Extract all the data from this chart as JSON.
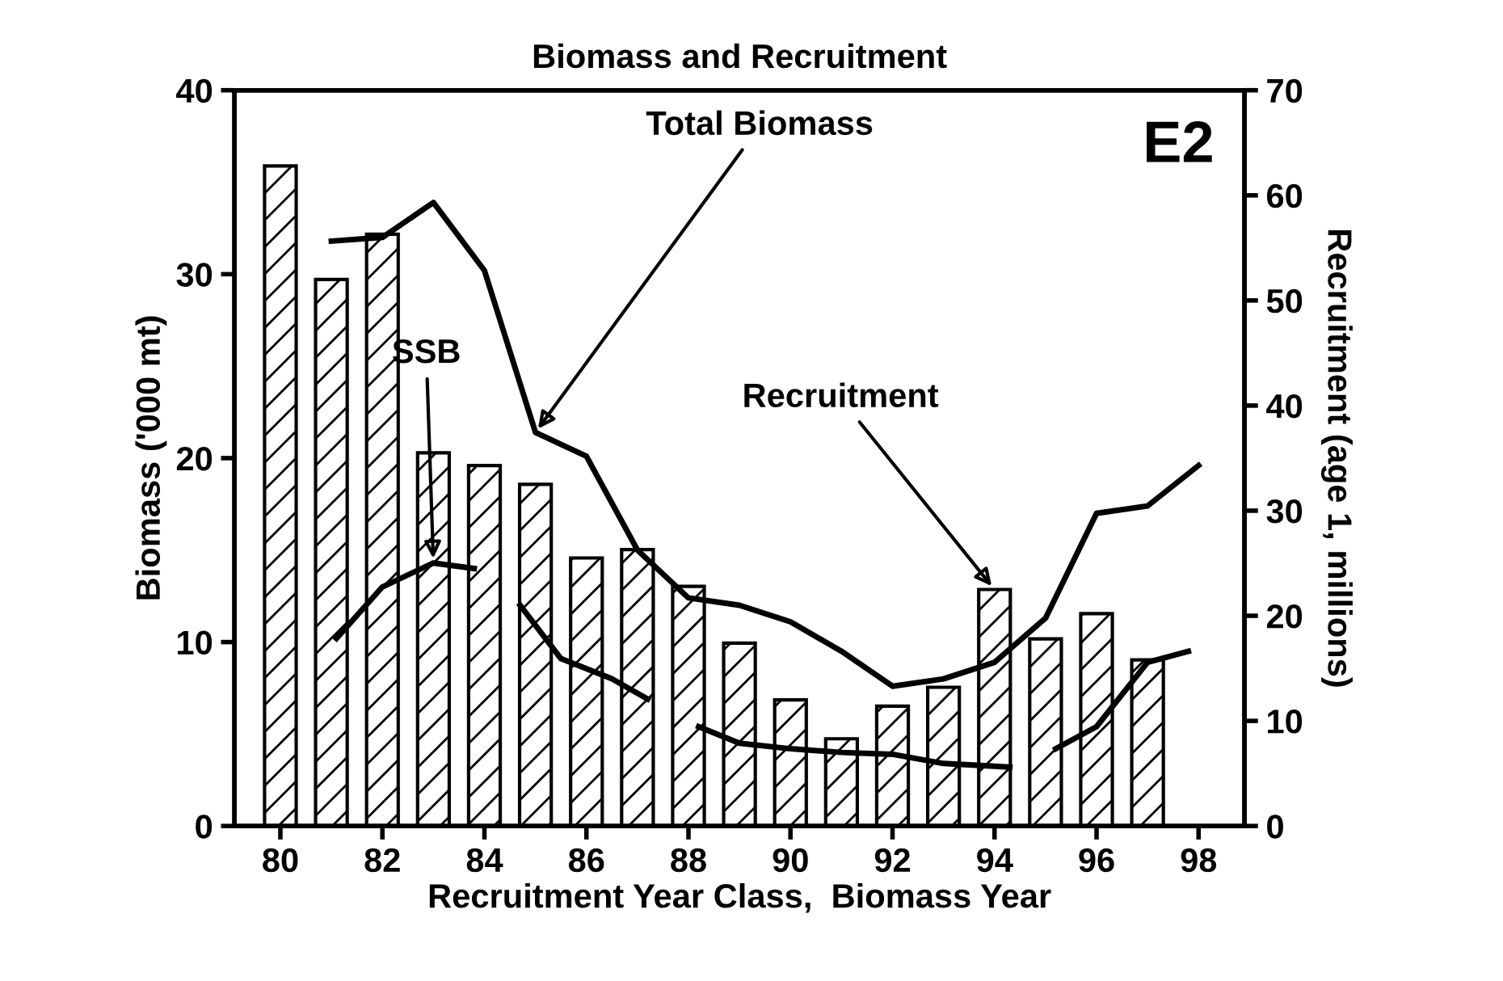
{
  "chart_data": {
    "type": "bar",
    "title": "Biomass and Recruitment",
    "xlabel": "Recruitment Year Class,  Biomass Year",
    "ylabel": "Biomass ('000 mt)",
    "y2label": "Recruitment (age 1, millions)",
    "x": [
      80,
      81,
      82,
      83,
      84,
      85,
      86,
      87,
      88,
      89,
      90,
      91,
      92,
      93,
      94,
      95,
      96,
      97
    ],
    "series": [
      {
        "name": "Recruitment",
        "axis": "y2",
        "color": "#000000",
        "values": [
          62.8,
          52,
          56.3,
          35.5,
          34.3,
          32.5,
          25.5,
          26.3,
          22.8,
          17.4,
          12,
          8.3,
          11.4,
          13.2,
          22.5,
          17.8,
          20.2,
          15.8
        ]
      },
      {
        "name": "Total Biomass",
        "type": "line",
        "color": "#000000",
        "x": [
          81,
          82,
          83,
          84,
          85,
          86,
          87,
          88,
          89,
          90,
          91,
          92,
          93,
          94,
          95,
          96,
          97,
          98
        ],
        "values": [
          31.8,
          32,
          33.9,
          30.2,
          21.4,
          20.1,
          15,
          12.4,
          12,
          11.1,
          9.5,
          7.6,
          8,
          8.9,
          11.3,
          17,
          17.4,
          19.6
        ]
      },
      {
        "name": "SSB",
        "type": "line",
        "color": "#000000",
        "x": [
          81.1,
          82,
          83,
          83.8
        ],
        "values": [
          10.2,
          13,
          14.3,
          14
        ]
      },
      {
        "type": "line",
        "color": "#000000",
        "x": [
          84.7,
          85.5,
          86.5,
          87.2
        ],
        "values": [
          12,
          9.1,
          8,
          6.9
        ]
      },
      {
        "type": "line",
        "color": "#000000",
        "x": [
          88.2,
          89,
          90,
          91,
          92,
          93,
          94.3
        ],
        "values": [
          5.4,
          4.5,
          4.2,
          4,
          3.9,
          3.4,
          3.2
        ]
      },
      {
        "type": "line",
        "color": "#000000",
        "x": [
          95.2,
          96,
          97,
          97.8
        ],
        "values": [
          4.2,
          5.4,
          8.9,
          9.5
        ]
      }
    ],
    "annotations": [
      "E2"
    ],
    "xlim": [
      79.1,
      98.9
    ],
    "xticks": [
      80,
      82,
      84,
      86,
      88,
      90,
      92,
      94,
      96,
      98
    ],
    "ylim": [
      0,
      40
    ],
    "yticks": [
      0,
      10,
      20,
      30,
      40
    ],
    "y2lim": [
      0,
      70
    ],
    "y2ticks": [
      0,
      10,
      20,
      30,
      40,
      50,
      60,
      70
    ],
    "grid": false,
    "legend": false
  }
}
